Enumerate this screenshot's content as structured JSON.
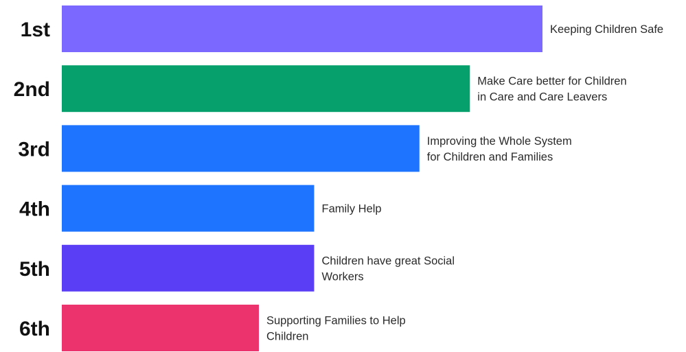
{
  "chart_data": {
    "type": "bar",
    "orientation": "horizontal",
    "title": "",
    "xlabel": "",
    "ylabel": "",
    "grid": false,
    "legend": "none",
    "categories": [
      "1st",
      "2nd",
      "3rd",
      "4th",
      "5th",
      "6th"
    ],
    "values": [
      100,
      84.9,
      74.4,
      52.5,
      52.5,
      41
    ],
    "xlim": [
      0,
      100
    ],
    "bar_labels": [
      [
        "Keeping Children Safe"
      ],
      [
        "Make Care better for Children",
        "in Care and Care Leavers"
      ],
      [
        "Improving the Whole System",
        "for Children and Families"
      ],
      [
        "Family Help"
      ],
      [
        "Children have great Social",
        "Workers"
      ],
      [
        "Supporting Families to Help",
        "Children"
      ]
    ],
    "colors": [
      "#7B68FE",
      "#05A06C",
      "#1F74FF",
      "#1F74FF",
      "#5A3EF5",
      "#EC336D"
    ]
  }
}
